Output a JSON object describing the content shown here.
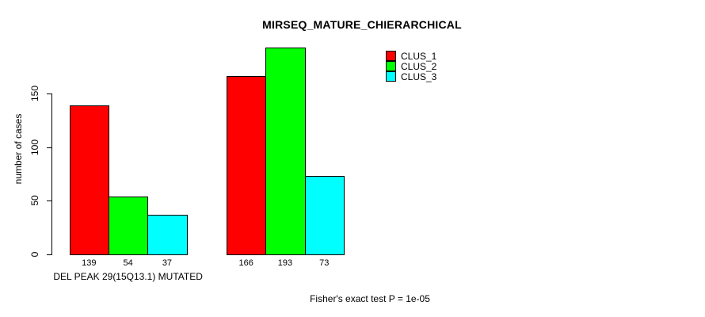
{
  "background": "#ffffff",
  "text_color": "#000000",
  "chart_data": {
    "type": "bar",
    "title": "MIRSEQ_MATURE_CHIERARCHICAL",
    "ylabel": "number of cases",
    "xlabel": "",
    "yticks": [
      0,
      50,
      100,
      150
    ],
    "ylim": [
      0,
      200
    ],
    "grid": false,
    "legend_position": "top-right",
    "categories": [
      "DEL PEAK 29(15Q13.1) MUTATED",
      ""
    ],
    "series": [
      {
        "name": "CLUS_1",
        "color": "#ff0000",
        "values": [
          139,
          166
        ]
      },
      {
        "name": "CLUS_2",
        "color": "#00ff00",
        "values": [
          54,
          193
        ]
      },
      {
        "name": "CLUS_3",
        "color": "#00ffff",
        "values": [
          37,
          73
        ]
      }
    ],
    "bar_value_labels_shown": true,
    "footnote": "Fisher's exact test P = 1e-05"
  }
}
